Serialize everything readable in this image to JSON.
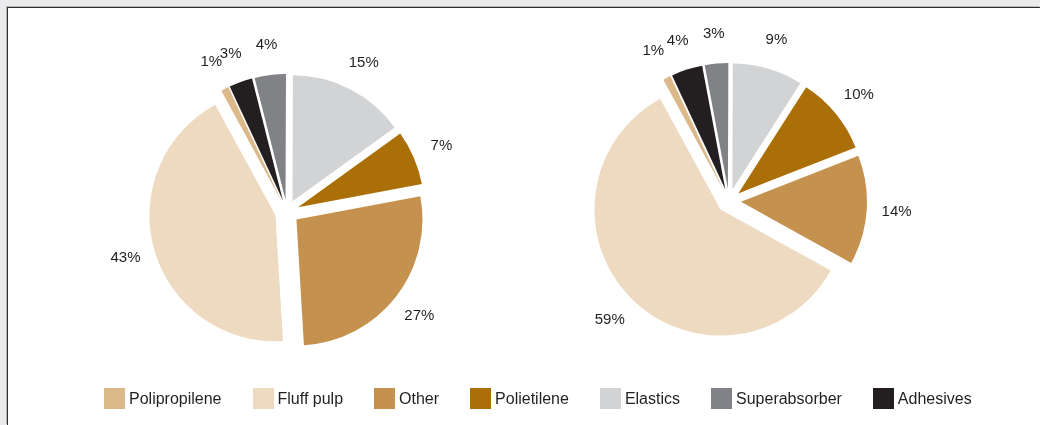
{
  "chart_data": [
    {
      "type": "pie",
      "categories": [
        "Polipropilene",
        "Fluff pulp",
        "Other",
        "Polietilene",
        "Elastics",
        "Superabsorber",
        "Adhesives"
      ],
      "values": [
        1,
        43,
        27,
        7,
        15,
        4,
        3
      ],
      "colors": [
        "#dbb98a",
        "#eddac0",
        "#c4924e",
        "#ab6f07",
        "#d1d3d4",
        "#808285",
        "#231f20"
      ],
      "value_labels": [
        "1%",
        "43%",
        "27%",
        "7%",
        "15%",
        "4%",
        "3%"
      ],
      "legend": "bottom"
    },
    {
      "type": "pie",
      "categories": [
        null,
        null,
        null,
        null,
        null,
        null,
        null
      ],
      "values": [
        1,
        59,
        14,
        10,
        9,
        3,
        4
      ],
      "colors": [
        "#dbb98a",
        "#eddac0",
        "#c4924e",
        "#ab6f07",
        "#d1d3d4",
        "#808285",
        "#231f20"
      ],
      "value_labels": [
        "1%",
        "59%",
        "14%",
        "10%",
        "9%",
        "3%",
        "4%"
      ]
    }
  ]
}
